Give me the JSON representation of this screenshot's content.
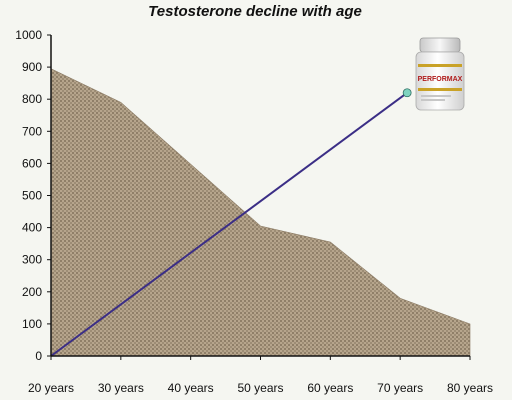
{
  "chart_data": {
    "type": "area",
    "title": "Testosterone decline with age",
    "xlabel": "",
    "ylabel": "",
    "categories": [
      "20 years",
      "30 years",
      "40 years",
      "50 years",
      "60 years",
      "70 years",
      "80 years"
    ],
    "x": [
      20,
      30,
      40,
      50,
      60,
      70,
      80
    ],
    "ylim": [
      0,
      1000
    ],
    "yticks": [
      0,
      100,
      200,
      300,
      400,
      500,
      600,
      700,
      800,
      900,
      1000
    ],
    "series": [
      {
        "kind": "area",
        "x": [
          20,
          30,
          50,
          60,
          70,
          80
        ],
        "values": [
          895,
          790,
          405,
          355,
          180,
          100
        ]
      },
      {
        "kind": "line",
        "x": [
          20,
          71
        ],
        "values": [
          0,
          820
        ]
      }
    ],
    "grid": false,
    "legend": "none",
    "colors": {
      "area_fill": "#b6a58c",
      "area_pattern": "#8a7a64",
      "line": "#3b2e86",
      "marker": "#7fd3c0",
      "axis": "#111111"
    },
    "product_image": {
      "label_text": "PERFORMAX",
      "icon": "supplement-bottle-icon"
    }
  }
}
